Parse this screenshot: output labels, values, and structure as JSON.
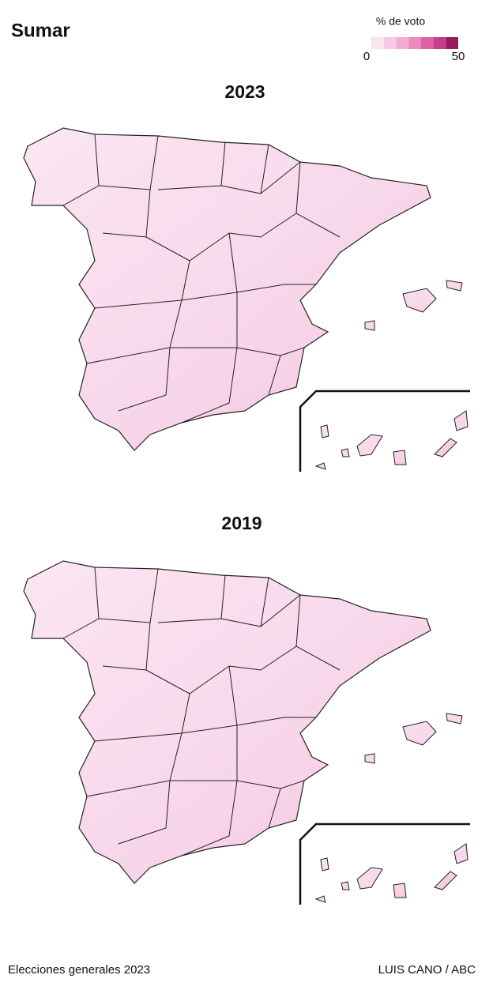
{
  "title": "Sumar",
  "legend": {
    "title": "% de voto",
    "min": 0,
    "max": 50,
    "colors": [
      "#fbe3f0",
      "#f7c9e2",
      "#f2abd2",
      "#ea8abf",
      "#de62a6",
      "#c63e89",
      "#9a1a62"
    ]
  },
  "maps": [
    {
      "label": "2023"
    },
    {
      "label": "2019"
    }
  ],
  "footer": {
    "left": "Elecciones generales 2023",
    "right": "LUIS CANO / ABC"
  }
}
